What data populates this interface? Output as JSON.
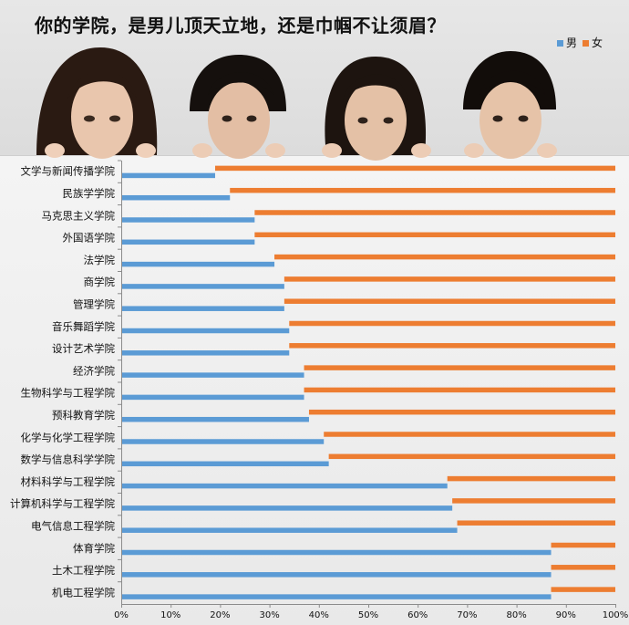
{
  "chart_data": {
    "type": "bar",
    "orientation": "horizontal",
    "stacked": "percent",
    "title": "你的学院，是男儿顶天立地，还是巾帼不让须眉？",
    "categories": [
      "文学与新闻传播学院",
      "民族学学院",
      "马克思主义学院",
      "外国语学院",
      "法学院",
      "商学院",
      "管理学院",
      "音乐舞蹈学院",
      "设计艺术学院",
      "经济学院",
      "生物科学与工程学院",
      "预科教育学院",
      "化学与化学工程学院",
      "数学与信息科学学院",
      "材料科学与工程学院",
      "计算机科学与工程学院",
      "电气信息工程学院",
      "体育学院",
      "土木工程学院",
      "机电工程学院"
    ],
    "series": [
      {
        "name": "男",
        "color": "#5b9bd5",
        "values": [
          19,
          22,
          27,
          27,
          31,
          33,
          33,
          34,
          34,
          37,
          37,
          38,
          41,
          42,
          66,
          67,
          68,
          87,
          87,
          87
        ]
      },
      {
        "name": "女",
        "color": "#ed7d31",
        "values": [
          81,
          78,
          73,
          73,
          69,
          67,
          67,
          66,
          66,
          63,
          63,
          62,
          59,
          58,
          34,
          33,
          32,
          13,
          13,
          13
        ]
      }
    ],
    "x_ticks": [
      "0%",
      "10%",
      "20%",
      "30%",
      "40%",
      "50%",
      "60%",
      "70%",
      "80%",
      "90%",
      "100%"
    ],
    "xlim": [
      0,
      100
    ],
    "legend_position": "top-right",
    "grid": false
  }
}
